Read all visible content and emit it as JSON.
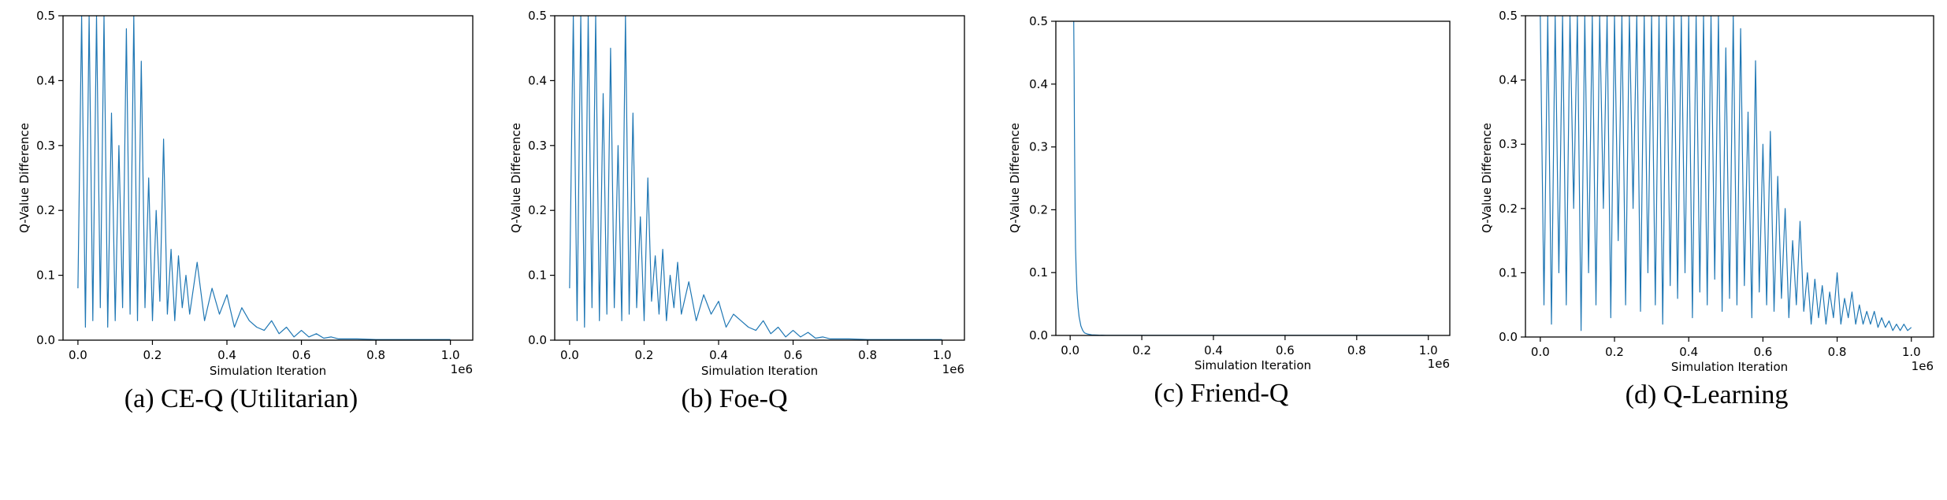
{
  "series_color": "#1f77b4",
  "chart_data": [
    {
      "type": "line",
      "caption": "(a) CE-Q (Utilitarian)",
      "xlabel": "Simulation Iteration",
      "ylabel": "Q-Value Difference",
      "x_offset_label": "1e6",
      "xlim": [
        -40000,
        1060000
      ],
      "ylim": [
        0,
        0.5
      ],
      "xticks": [
        0,
        200000,
        400000,
        600000,
        800000,
        1000000
      ],
      "xtick_labels": [
        "0.0",
        "0.2",
        "0.4",
        "0.6",
        "0.8",
        "1.0"
      ],
      "yticks": [
        0,
        0.1,
        0.2,
        0.3,
        0.4,
        0.5
      ],
      "ytick_labels": [
        "0.0",
        "0.1",
        "0.2",
        "0.3",
        "0.4",
        "0.5"
      ],
      "grid": false,
      "legend": "none",
      "series": [
        {
          "x": [
            0,
            10000,
            20000,
            30000,
            40000,
            50000,
            60000,
            70000,
            80000,
            90000,
            100000,
            110000,
            120000,
            130000,
            140000,
            150000,
            160000,
            170000,
            180000,
            190000,
            200000,
            210000,
            220000,
            230000,
            240000,
            250000,
            260000,
            270000,
            280000,
            290000,
            300000,
            320000,
            340000,
            360000,
            380000,
            400000,
            420000,
            440000,
            460000,
            480000,
            500000,
            520000,
            540000,
            560000,
            580000,
            600000,
            620000,
            640000,
            660000,
            680000,
            700000,
            750000,
            800000,
            900000,
            1000000
          ],
          "y": [
            0.08,
            0.5,
            0.02,
            0.5,
            0.03,
            0.5,
            0.05,
            0.5,
            0.02,
            0.35,
            0.03,
            0.3,
            0.05,
            0.48,
            0.04,
            0.5,
            0.03,
            0.43,
            0.05,
            0.25,
            0.03,
            0.2,
            0.06,
            0.31,
            0.04,
            0.14,
            0.03,
            0.13,
            0.05,
            0.1,
            0.04,
            0.12,
            0.03,
            0.08,
            0.04,
            0.07,
            0.02,
            0.05,
            0.03,
            0.02,
            0.015,
            0.03,
            0.01,
            0.02,
            0.005,
            0.015,
            0.005,
            0.01,
            0.003,
            0.005,
            0.002,
            0.002,
            0.001,
            0.001,
            0.001
          ]
        }
      ]
    },
    {
      "type": "line",
      "caption": "(b) Foe-Q",
      "xlabel": "Simulation Iteration",
      "ylabel": "Q-Value Difference",
      "x_offset_label": "1e6",
      "xlim": [
        -40000,
        1060000
      ],
      "ylim": [
        0,
        0.5
      ],
      "xticks": [
        0,
        200000,
        400000,
        600000,
        800000,
        1000000
      ],
      "xtick_labels": [
        "0.0",
        "0.2",
        "0.4",
        "0.6",
        "0.8",
        "1.0"
      ],
      "yticks": [
        0,
        0.1,
        0.2,
        0.3,
        0.4,
        0.5
      ],
      "ytick_labels": [
        "0.0",
        "0.1",
        "0.2",
        "0.3",
        "0.4",
        "0.5"
      ],
      "grid": false,
      "legend": "none",
      "series": [
        {
          "x": [
            0,
            10000,
            20000,
            30000,
            40000,
            50000,
            60000,
            70000,
            80000,
            90000,
            100000,
            110000,
            120000,
            130000,
            140000,
            150000,
            160000,
            170000,
            180000,
            190000,
            200000,
            210000,
            220000,
            230000,
            240000,
            250000,
            260000,
            270000,
            280000,
            290000,
            300000,
            320000,
            340000,
            360000,
            380000,
            400000,
            420000,
            440000,
            460000,
            480000,
            500000,
            520000,
            540000,
            560000,
            580000,
            600000,
            620000,
            640000,
            660000,
            680000,
            700000,
            750000,
            800000,
            900000,
            1000000
          ],
          "y": [
            0.08,
            0.5,
            0.03,
            0.5,
            0.02,
            0.5,
            0.05,
            0.5,
            0.03,
            0.38,
            0.04,
            0.45,
            0.05,
            0.3,
            0.03,
            0.5,
            0.04,
            0.35,
            0.05,
            0.19,
            0.03,
            0.25,
            0.06,
            0.13,
            0.04,
            0.14,
            0.03,
            0.1,
            0.05,
            0.12,
            0.04,
            0.09,
            0.03,
            0.07,
            0.04,
            0.06,
            0.02,
            0.04,
            0.03,
            0.02,
            0.015,
            0.03,
            0.01,
            0.02,
            0.005,
            0.015,
            0.005,
            0.012,
            0.003,
            0.005,
            0.002,
            0.002,
            0.001,
            0.001,
            0.001
          ]
        }
      ]
    },
    {
      "type": "line",
      "caption": "(c) Friend-Q",
      "xlabel": "Simulation Iteration",
      "ylabel": "Q-Value Difference",
      "x_offset_label": "1e6",
      "xlim": [
        -40000,
        1060000
      ],
      "ylim": [
        0,
        0.5
      ],
      "xticks": [
        0,
        200000,
        400000,
        600000,
        800000,
        1000000
      ],
      "xtick_labels": [
        "0.0",
        "0.2",
        "0.4",
        "0.6",
        "0.8",
        "1.0"
      ],
      "yticks": [
        0,
        0.1,
        0.2,
        0.3,
        0.4,
        0.5
      ],
      "ytick_labels": [
        "0.0",
        "0.1",
        "0.2",
        "0.3",
        "0.4",
        "0.5"
      ],
      "grid": false,
      "legend": "none",
      "series": [
        {
          "x": [
            10000,
            11000,
            12000,
            13000,
            14000,
            15000,
            17000,
            19000,
            22000,
            25000,
            30000,
            35000,
            40000,
            50000,
            60000,
            80000,
            100000,
            200000,
            400000,
            600000,
            800000,
            1000000
          ],
          "y": [
            0.5,
            0.42,
            0.33,
            0.25,
            0.19,
            0.14,
            0.1,
            0.07,
            0.045,
            0.03,
            0.015,
            0.008,
            0.004,
            0.002,
            0.001,
            0.0005,
            0.0003,
            0.0002,
            0.0001,
            0.0001,
            0.0001,
            0.0001
          ]
        }
      ]
    },
    {
      "type": "line",
      "caption": "(d) Q-Learning",
      "xlabel": "Simulation Iteration",
      "ylabel": "Q-Value Difference",
      "x_offset_label": "1e6",
      "xlim": [
        -40000,
        1060000
      ],
      "ylim": [
        0,
        0.5
      ],
      "xticks": [
        0,
        200000,
        400000,
        600000,
        800000,
        1000000
      ],
      "xtick_labels": [
        "0.0",
        "0.2",
        "0.4",
        "0.6",
        "0.8",
        "1.0"
      ],
      "yticks": [
        0,
        0.1,
        0.2,
        0.3,
        0.4,
        0.5
      ],
      "ytick_labels": [
        "0.0",
        "0.1",
        "0.2",
        "0.3",
        "0.4",
        "0.5"
      ],
      "grid": false,
      "legend": "none",
      "series": [
        {
          "x": [
            0,
            10000,
            20000,
            30000,
            40000,
            50000,
            60000,
            70000,
            80000,
            90000,
            100000,
            110000,
            120000,
            130000,
            140000,
            150000,
            160000,
            170000,
            180000,
            190000,
            200000,
            210000,
            220000,
            230000,
            240000,
            250000,
            260000,
            270000,
            280000,
            290000,
            300000,
            310000,
            320000,
            330000,
            340000,
            350000,
            360000,
            370000,
            380000,
            390000,
            400000,
            410000,
            420000,
            430000,
            440000,
            450000,
            460000,
            470000,
            480000,
            490000,
            500000,
            510000,
            520000,
            530000,
            540000,
            550000,
            560000,
            570000,
            580000,
            590000,
            600000,
            610000,
            620000,
            630000,
            640000,
            650000,
            660000,
            670000,
            680000,
            690000,
            700000,
            710000,
            720000,
            730000,
            740000,
            750000,
            760000,
            770000,
            780000,
            790000,
            800000,
            810000,
            820000,
            830000,
            840000,
            850000,
            860000,
            870000,
            880000,
            890000,
            900000,
            910000,
            920000,
            930000,
            940000,
            950000,
            960000,
            970000,
            980000,
            990000,
            1000000
          ],
          "y": [
            0.5,
            0.05,
            0.5,
            0.02,
            0.5,
            0.1,
            0.5,
            0.05,
            0.5,
            0.2,
            0.5,
            0.01,
            0.5,
            0.1,
            0.5,
            0.05,
            0.5,
            0.2,
            0.5,
            0.03,
            0.5,
            0.15,
            0.5,
            0.05,
            0.5,
            0.2,
            0.5,
            0.04,
            0.5,
            0.1,
            0.5,
            0.05,
            0.5,
            0.02,
            0.5,
            0.08,
            0.5,
            0.06,
            0.5,
            0.1,
            0.5,
            0.03,
            0.5,
            0.07,
            0.5,
            0.05,
            0.5,
            0.09,
            0.5,
            0.04,
            0.45,
            0.06,
            0.5,
            0.05,
            0.48,
            0.08,
            0.35,
            0.03,
            0.43,
            0.07,
            0.3,
            0.05,
            0.32,
            0.04,
            0.25,
            0.06,
            0.2,
            0.03,
            0.15,
            0.05,
            0.18,
            0.04,
            0.1,
            0.02,
            0.09,
            0.03,
            0.08,
            0.02,
            0.07,
            0.03,
            0.1,
            0.02,
            0.06,
            0.03,
            0.07,
            0.02,
            0.05,
            0.02,
            0.04,
            0.02,
            0.04,
            0.015,
            0.03,
            0.015,
            0.025,
            0.01,
            0.02,
            0.01,
            0.02,
            0.01,
            0.015
          ]
        }
      ]
    }
  ]
}
